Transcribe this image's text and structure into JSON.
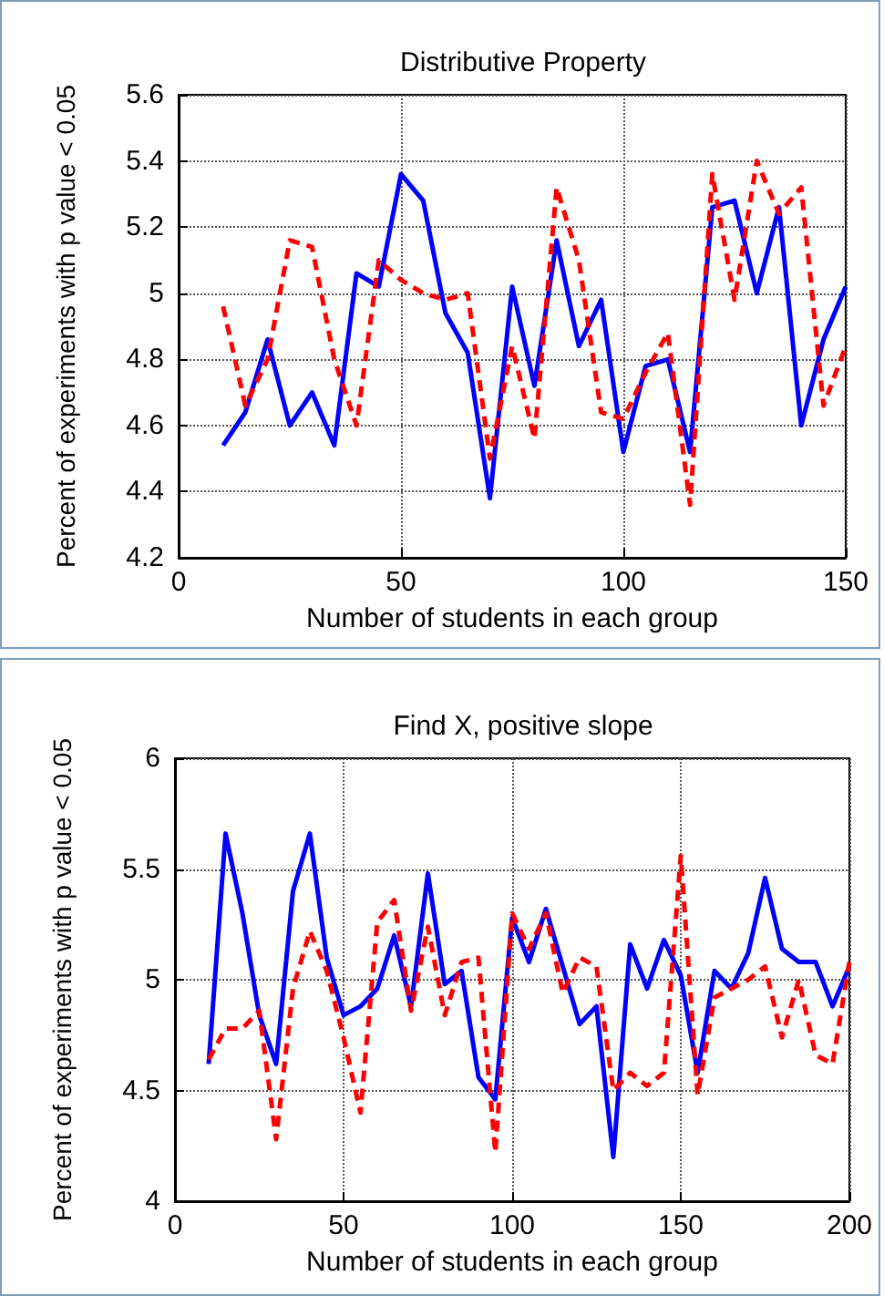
{
  "chart_data": [
    {
      "type": "line",
      "title": "Distributive Property",
      "xlabel": "Number of students in each group",
      "ylabel": "Percent of experiments with p value < 0.05",
      "xlim": [
        0,
        150
      ],
      "xticks": [
        0,
        50,
        100,
        150
      ],
      "ylim": [
        4.2,
        5.6
      ],
      "yticks": [
        4.2,
        4.4,
        4.6,
        4.8,
        5,
        5.2,
        5.4,
        5.6
      ],
      "grid": true,
      "marker": "none",
      "x": [
        10,
        15,
        20,
        25,
        30,
        35,
        40,
        45,
        50,
        55,
        60,
        65,
        70,
        75,
        80,
        85,
        90,
        95,
        100,
        105,
        110,
        115,
        120,
        125,
        130,
        135,
        140,
        145,
        150
      ],
      "series": [
        {
          "color": "#0000ff",
          "line_style": "solid",
          "values": [
            4.54,
            4.64,
            4.86,
            4.6,
            4.7,
            4.54,
            5.06,
            5.02,
            5.36,
            5.28,
            4.94,
            4.82,
            4.38,
            5.02,
            4.72,
            5.16,
            4.84,
            4.98,
            4.52,
            4.78,
            4.8,
            4.52,
            5.26,
            5.28,
            5.0,
            5.26,
            4.6,
            4.86,
            5.02
          ]
        },
        {
          "color": "#ff0000",
          "line_style": "dashed",
          "values": [
            4.96,
            4.66,
            4.8,
            5.16,
            5.14,
            4.8,
            4.6,
            5.1,
            5.04,
            5.0,
            4.98,
            5.0,
            4.5,
            4.84,
            4.56,
            5.32,
            5.1,
            4.64,
            4.62,
            4.76,
            4.88,
            4.36,
            5.36,
            4.98,
            5.4,
            5.24,
            5.32,
            4.66,
            4.84
          ]
        }
      ]
    },
    {
      "type": "line",
      "title": "Find X, positive slope",
      "xlabel": "Number of students in each group",
      "ylabel": "Percent of experiments with p value < 0.05",
      "xlim": [
        0,
        200
      ],
      "xticks": [
        0,
        50,
        100,
        150,
        200
      ],
      "ylim": [
        4,
        6
      ],
      "yticks": [
        4,
        4.5,
        5,
        5.5,
        6
      ],
      "grid": true,
      "marker": "none",
      "x": [
        10,
        15,
        20,
        25,
        30,
        35,
        40,
        45,
        50,
        55,
        60,
        65,
        70,
        75,
        80,
        85,
        90,
        95,
        100,
        105,
        110,
        115,
        120,
        125,
        130,
        135,
        140,
        145,
        150,
        155,
        160,
        165,
        170,
        175,
        180,
        185,
        190,
        195,
        200
      ],
      "series": [
        {
          "color": "#0000ff",
          "line_style": "solid",
          "values": [
            4.62,
            5.66,
            5.3,
            4.84,
            4.62,
            5.4,
            5.66,
            5.1,
            4.84,
            4.88,
            4.96,
            5.2,
            4.88,
            5.48,
            4.98,
            5.04,
            4.56,
            4.46,
            5.28,
            5.08,
            5.32,
            5.06,
            4.8,
            4.88,
            4.2,
            5.16,
            4.96,
            5.18,
            5.02,
            4.58,
            5.04,
            4.96,
            5.12,
            5.46,
            5.14,
            5.08,
            5.08,
            4.88,
            5.06
          ]
        },
        {
          "color": "#ff0000",
          "line_style": "dashed",
          "values": [
            4.64,
            4.78,
            4.78,
            4.86,
            4.28,
            4.96,
            5.22,
            5.04,
            4.74,
            4.4,
            5.26,
            5.36,
            4.86,
            5.24,
            4.84,
            5.08,
            5.1,
            4.22,
            5.3,
            5.14,
            5.3,
            4.94,
            5.1,
            5.06,
            4.5,
            4.58,
            4.52,
            4.58,
            5.56,
            4.48,
            4.92,
            4.96,
            5.0,
            5.06,
            4.74,
            5.0,
            4.66,
            4.62,
            5.08
          ]
        }
      ]
    }
  ]
}
